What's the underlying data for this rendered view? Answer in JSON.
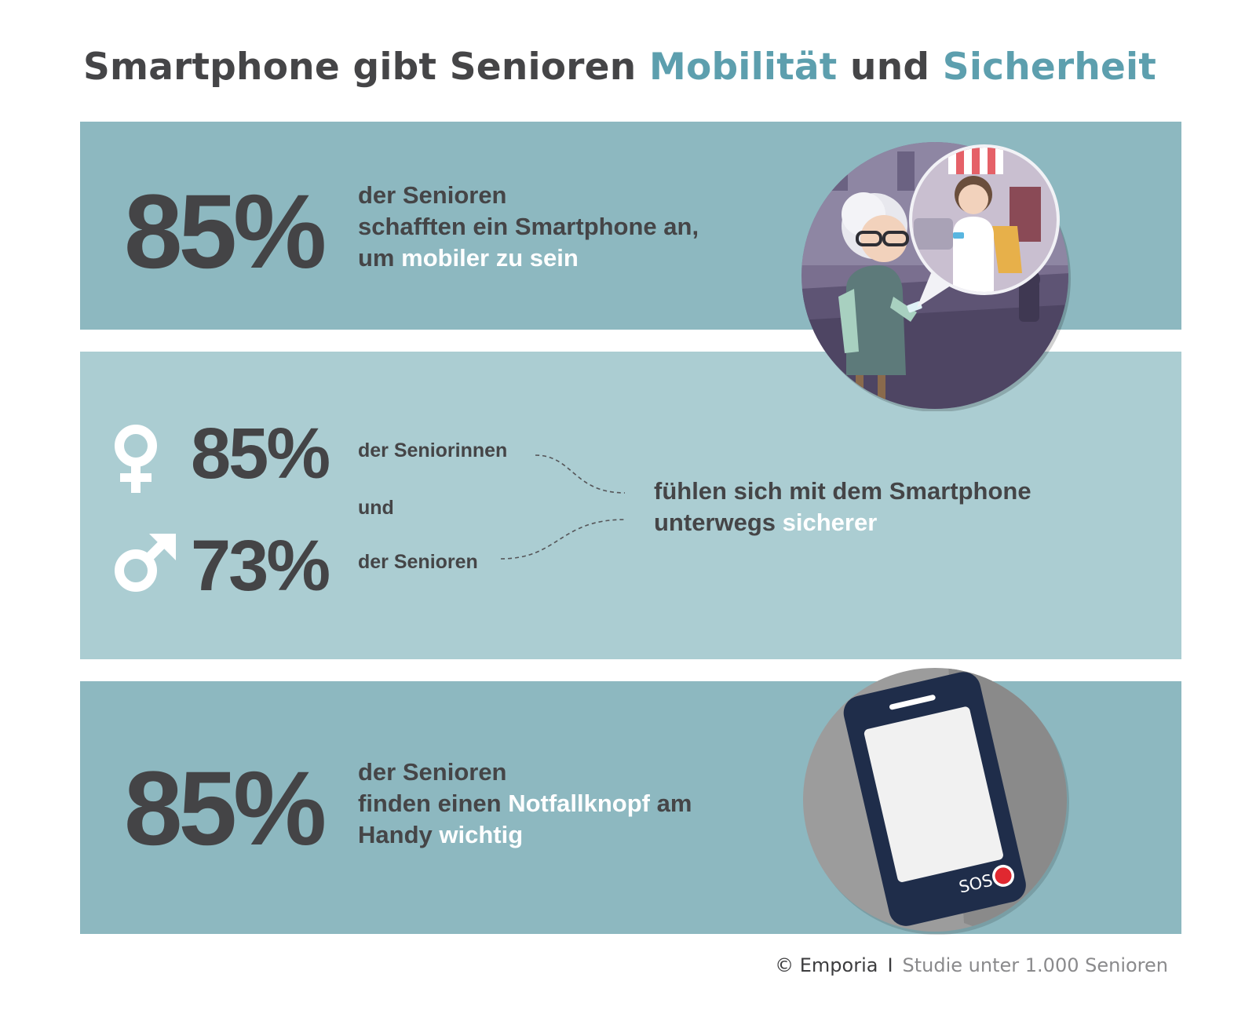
{
  "title": {
    "part1": "Smartphone gibt Senioren ",
    "highlight1": "Mobilität",
    "part2": " und ",
    "highlight2": "Sicherheit"
  },
  "section1": {
    "percent": "85%",
    "line1": "der Senioren",
    "line2": "schafften ein Smartphone an,",
    "line3_prefix": "um ",
    "line3_highlight": "mobiler zu sein",
    "illustration_icon": "senior-woman-with-smartphone-illustration"
  },
  "section2": {
    "female_icon": "female-symbol-icon",
    "female_percent": "85%",
    "female_label": "der Seniorinnen",
    "connector": "und",
    "male_icon": "male-symbol-icon",
    "male_percent": "73%",
    "male_label": "der Senioren",
    "statement_line1": "fühlen sich mit dem Smartphone",
    "statement_line2_prefix": "unterwegs ",
    "statement_line2_highlight": "sicherer"
  },
  "section3": {
    "percent": "85%",
    "line1": "der Senioren",
    "line2_prefix": "finden einen ",
    "line2_highlight": "Notfallknopf",
    "line2_suffix": " am",
    "line3_prefix": "Handy ",
    "line3_highlight": "wichtig",
    "phone_icon": "smartphone-sos-icon",
    "sos_label": "SOS"
  },
  "footer": {
    "brand": "© Emporia",
    "separator": "I",
    "note": "Studie unter 1.000 Senioren"
  },
  "colors": {
    "accent": "#5d9fae",
    "panel_dark": "#8db8c0",
    "panel_light": "#abcdd2",
    "text": "#454547",
    "sos_red": "#e02830"
  }
}
